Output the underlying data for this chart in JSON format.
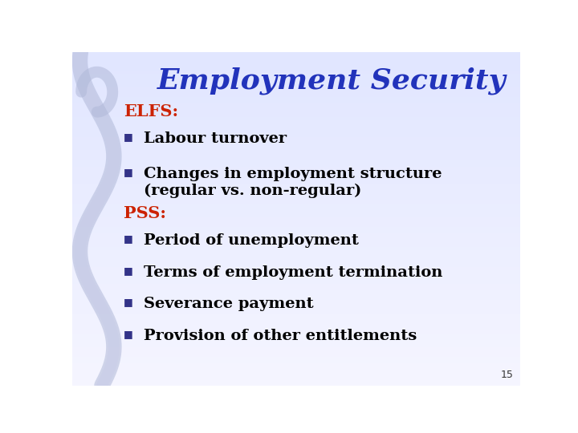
{
  "title": "Employment Security",
  "title_color": "#2233bb",
  "title_fontsize": 26,
  "title_fontstyle": "italic",
  "title_fontweight": "bold",
  "elfs_label": "ELFS:",
  "elfs_color": "#cc2200",
  "elfs_fontsize": 15,
  "pss_label": "PSS:",
  "pss_color": "#cc2200",
  "pss_fontsize": 15,
  "bullet_color": "#333388",
  "bullet_fontsize": 14,
  "bullet_fontweight": "bold",
  "text_color": "#000000",
  "elfs_bullets": [
    "Labour turnover",
    "Changes in employment structure\n(regular vs. non-regular)"
  ],
  "pss_bullets": [
    "Period of unemployment",
    "Terms of employment termination",
    "Severance payment",
    "Provision of other entitlements"
  ],
  "page_number": "15",
  "page_number_color": "#333333",
  "page_number_fontsize": 9
}
